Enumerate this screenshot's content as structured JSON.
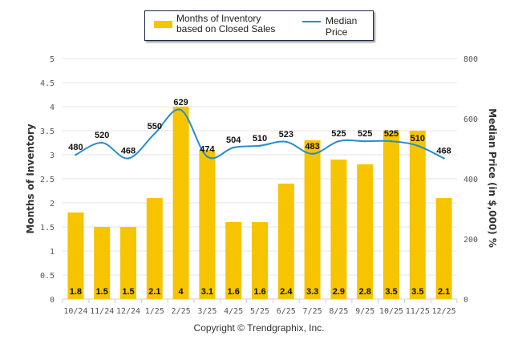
{
  "chart_data": {
    "type": "bar",
    "categories": [
      "10/24",
      "11/24",
      "12/24",
      "1/25",
      "2/25",
      "3/25",
      "4/25",
      "5/25",
      "6/25",
      "7/25",
      "8/25",
      "9/25",
      "10/25",
      "11/25",
      "12/25"
    ],
    "series": [
      {
        "name": "Months of Inventory based on Closed Sales",
        "type": "bar",
        "axis": "left",
        "color": "#f7c400",
        "values": [
          1.8,
          1.5,
          1.5,
          2.1,
          4,
          3.1,
          1.6,
          1.6,
          2.4,
          3.3,
          2.9,
          2.8,
          3.5,
          3.5,
          2.1
        ],
        "labels": [
          "1.8",
          "1.5",
          "1.5",
          "2.1",
          "4",
          "3.1",
          "1.6",
          "1.6",
          "2.4",
          "3.3",
          "2.9",
          "2.8",
          "3.5",
          "3.5",
          "2.1"
        ]
      },
      {
        "name": "Median Price",
        "type": "line",
        "axis": "right",
        "color": "#2b8ccd",
        "values": [
          480,
          520,
          468,
          550,
          629,
          474,
          504,
          510,
          523,
          483,
          525,
          525,
          525,
          510,
          468
        ],
        "labels": [
          "480",
          "520",
          "468",
          "550",
          "629",
          "474",
          "504",
          "510",
          "523",
          "483",
          "525",
          "525",
          "525",
          "510",
          "468"
        ]
      }
    ],
    "ylabel": "Months of Inventory",
    "y2label": "Median Price (in $,000) %",
    "ylim": [
      0,
      5
    ],
    "y2lim": [
      0,
      800
    ],
    "yticks": [
      "0",
      "0.5",
      "1",
      "1.5",
      "2",
      "2.5",
      "3",
      "3.5",
      "4",
      "4.5",
      "5"
    ],
    "y2ticks": [
      "0",
      "200",
      "400",
      "600",
      "800"
    ],
    "grid": true,
    "legend_position": "top-center"
  },
  "legend": {
    "bar_label": "Months of Inventory based on Closed Sales",
    "line_label": "Median Price"
  },
  "footer": {
    "copyright": "Copyright © Trendgraphix, Inc."
  }
}
